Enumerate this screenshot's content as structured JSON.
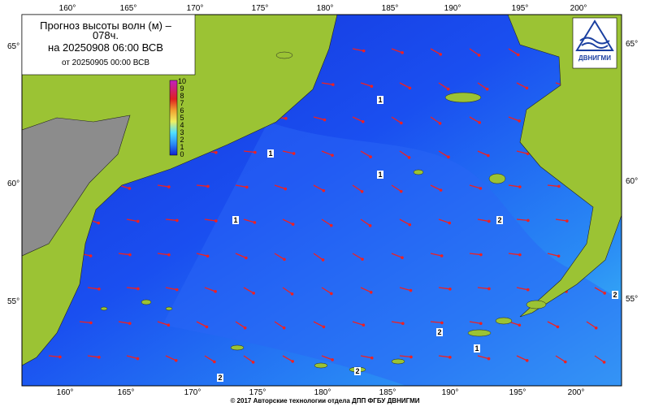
{
  "header": {
    "title_line1": "Прогноз высоты волн (м) –",
    "title_line2": "078ч.",
    "valid_time": "на 20250908 06:00 ВСВ",
    "issued": "от 20250905 00:00 ВСВ"
  },
  "colorbar": {
    "labels": [
      "10",
      "9",
      "8",
      "7",
      "6",
      "5",
      "4",
      "3",
      "2",
      "1",
      "0"
    ]
  },
  "longitudes": [
    "160°",
    "165°",
    "170°",
    "175°",
    "180°",
    "185°",
    "190°",
    "195°",
    "200°"
  ],
  "latitudes": [
    "65°",
    "60°",
    "55°"
  ],
  "contour_labels": [
    "1",
    "1",
    "1",
    "1",
    "2",
    "2",
    "1",
    "2",
    "2",
    "2"
  ],
  "logo": {
    "text": "ДВНИГМИ"
  },
  "footer": "© 2017 Авторские технологии отдела ДПП ФГБУ ДВНИГМИ"
}
